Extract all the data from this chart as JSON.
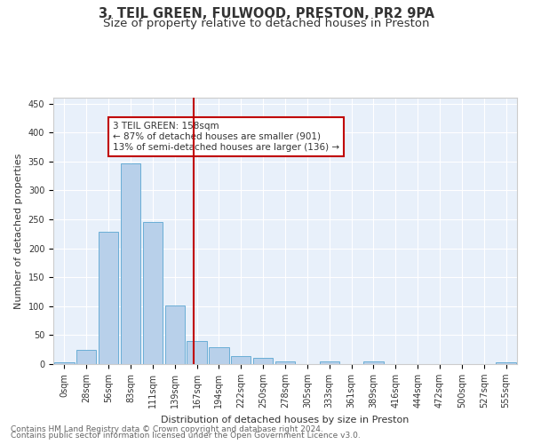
{
  "title": "3, TEIL GREEN, FULWOOD, PRESTON, PR2 9PA",
  "subtitle": "Size of property relative to detached houses in Preston",
  "xlabel": "Distribution of detached houses by size in Preston",
  "ylabel": "Number of detached properties",
  "footnote1": "Contains HM Land Registry data © Crown copyright and database right 2024.",
  "footnote2": "Contains public sector information licensed under the Open Government Licence v3.0.",
  "bar_labels": [
    "0sqm",
    "28sqm",
    "56sqm",
    "83sqm",
    "111sqm",
    "139sqm",
    "167sqm",
    "194sqm",
    "222sqm",
    "250sqm",
    "278sqm",
    "305sqm",
    "333sqm",
    "361sqm",
    "389sqm",
    "416sqm",
    "444sqm",
    "472sqm",
    "500sqm",
    "527sqm",
    "555sqm"
  ],
  "bar_values": [
    3,
    25,
    228,
    346,
    246,
    101,
    40,
    29,
    14,
    11,
    5,
    0,
    4,
    0,
    4,
    0,
    0,
    0,
    0,
    0,
    3
  ],
  "bar_color": "#b8d0ea",
  "bar_edge_color": "#6aaed6",
  "background_color": "#e8f0fa",
  "grid_color": "#ffffff",
  "vline_x": 5.85,
  "vline_color": "#c00000",
  "annotation_text": "3 TEIL GREEN: 158sqm\n← 87% of detached houses are smaller (901)\n13% of semi-detached houses are larger (136) →",
  "annotation_box_color": "#c00000",
  "ylim": [
    0,
    460
  ],
  "yticks": [
    0,
    50,
    100,
    150,
    200,
    250,
    300,
    350,
    400,
    450
  ],
  "title_fontsize": 10.5,
  "subtitle_fontsize": 9.5,
  "axis_label_fontsize": 8,
  "tick_fontsize": 7,
  "annotation_fontsize": 7.5,
  "footnote_fontsize": 6.5
}
